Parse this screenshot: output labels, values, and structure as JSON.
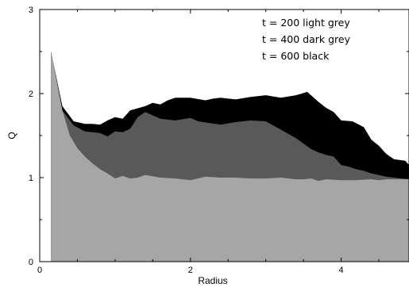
{
  "chart_data": {
    "type": "area",
    "title": "",
    "xlabel": "Radius",
    "ylabel": "Q",
    "xlim": [
      0,
      4.9
    ],
    "ylim": [
      0,
      3
    ],
    "x_ticks": [
      0,
      2,
      4
    ],
    "y_ticks": [
      0,
      1,
      2,
      3
    ],
    "x_minor_step": 0.5,
    "y_minor_step": 0.5,
    "grid": false,
    "legend_position": "top-right",
    "legend": [
      {
        "text": "t = 200 light grey"
      },
      {
        "text": "t = 400 dark grey"
      },
      {
        "text": "t = 600 black"
      }
    ],
    "series": [
      {
        "color": "#000000",
        "x": [
          0.15,
          0.3,
          0.45,
          0.6,
          0.7,
          0.8,
          0.9,
          1.0,
          1.1,
          1.2,
          1.4,
          1.5,
          1.6,
          1.7,
          1.8,
          2.0,
          2.2,
          2.3,
          2.4,
          2.6,
          2.8,
          3.0,
          3.2,
          3.4,
          3.55,
          3.7,
          3.8,
          3.9,
          4.0,
          4.15,
          4.3,
          4.4,
          4.5,
          4.6,
          4.7,
          4.85,
          4.9
        ],
        "y": [
          2.5,
          1.85,
          1.67,
          1.64,
          1.64,
          1.63,
          1.68,
          1.72,
          1.7,
          1.8,
          1.85,
          1.89,
          1.87,
          1.92,
          1.95,
          1.95,
          1.92,
          1.94,
          1.95,
          1.93,
          1.96,
          1.98,
          1.95,
          1.98,
          2.02,
          1.9,
          1.83,
          1.78,
          1.68,
          1.67,
          1.6,
          1.45,
          1.38,
          1.28,
          1.22,
          1.2,
          1.15
        ]
      },
      {
        "color": "#595959",
        "x": [
          0.15,
          0.3,
          0.45,
          0.6,
          0.7,
          0.8,
          0.9,
          1.0,
          1.1,
          1.2,
          1.3,
          1.4,
          1.6,
          1.8,
          2.0,
          2.1,
          2.4,
          2.6,
          2.8,
          3.0,
          3.2,
          3.4,
          3.6,
          3.7,
          3.8,
          3.9,
          4.0,
          4.1,
          4.2,
          4.3,
          4.4,
          4.5,
          4.6,
          4.7,
          4.8,
          4.9
        ],
        "y": [
          2.5,
          1.8,
          1.62,
          1.55,
          1.54,
          1.53,
          1.49,
          1.55,
          1.54,
          1.58,
          1.72,
          1.78,
          1.7,
          1.68,
          1.71,
          1.67,
          1.63,
          1.66,
          1.68,
          1.67,
          1.57,
          1.47,
          1.34,
          1.3,
          1.27,
          1.25,
          1.15,
          1.13,
          1.1,
          1.08,
          1.05,
          1.03,
          1.01,
          1.0,
          0.99,
          0.98
        ]
      },
      {
        "color": "#a6a6a6",
        "x": [
          0.15,
          0.3,
          0.4,
          0.5,
          0.6,
          0.7,
          0.8,
          0.9,
          1.0,
          1.1,
          1.2,
          1.3,
          1.4,
          1.6,
          1.8,
          2.0,
          2.2,
          2.4,
          2.6,
          2.8,
          3.0,
          3.2,
          3.4,
          3.5,
          3.6,
          3.7,
          3.8,
          4.0,
          4.2,
          4.4,
          4.5,
          4.6,
          4.8,
          4.9
        ],
        "y": [
          2.5,
          1.8,
          1.5,
          1.35,
          1.25,
          1.17,
          1.1,
          1.05,
          0.99,
          1.02,
          0.99,
          1.0,
          1.03,
          1.0,
          0.99,
          0.97,
          1.01,
          1.0,
          1.0,
          0.99,
          0.99,
          1.0,
          0.98,
          0.98,
          0.99,
          0.96,
          0.98,
          0.97,
          0.97,
          0.98,
          0.97,
          0.98,
          0.98,
          0.98
        ]
      }
    ]
  }
}
